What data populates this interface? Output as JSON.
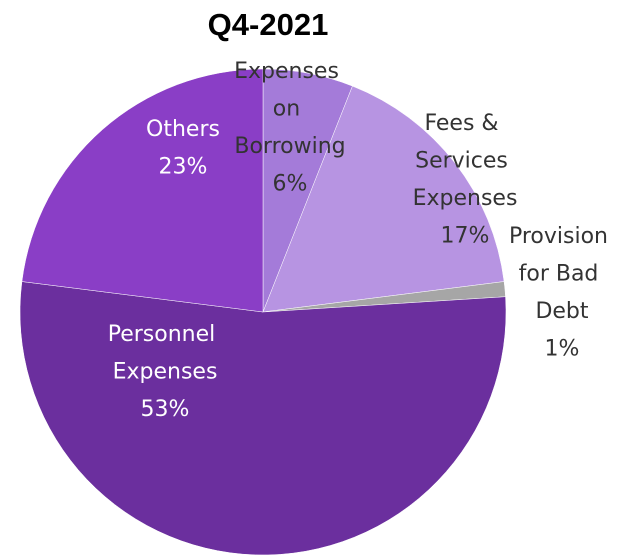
{
  "chart_data": {
    "type": "pie",
    "title": "Q4-2021",
    "categories": [
      "Expenses on Borrowing",
      "Fees & Services Expenses",
      "Provision for Bad Debt",
      "Personnel Expenses",
      "Others"
    ],
    "values": [
      6,
      17,
      1,
      53,
      23
    ],
    "value_labels": [
      "6%",
      "17%",
      "1%",
      "53%",
      "23%"
    ],
    "colors": [
      "#a47bd9",
      "#b794e2",
      "#a6a6a6",
      "#6b2f9e",
      "#8a3ec6"
    ]
  }
}
